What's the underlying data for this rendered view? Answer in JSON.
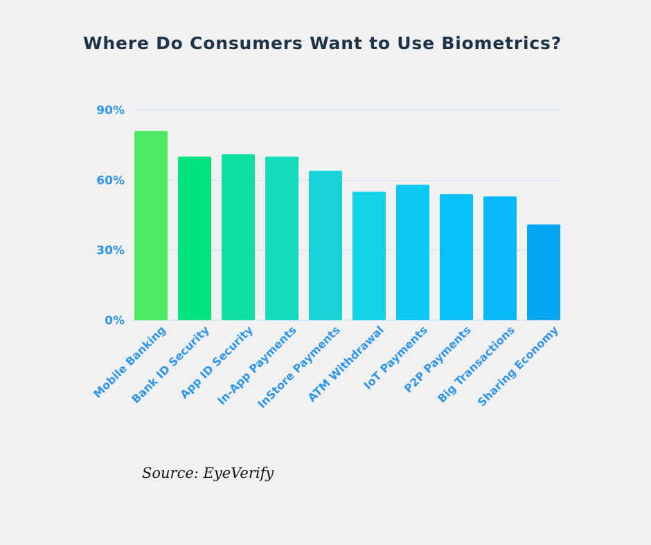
{
  "chart_data": {
    "type": "bar",
    "title": "Where Do Consumers Want to Use Biometrics?",
    "categories": [
      "Mobile Banking",
      "Bank ID Security",
      "App ID Security",
      "In-App Payments",
      "InStore Payments",
      "ATM Withdrawal",
      "IoT Payments",
      "P2P Payments",
      "Big Transactions",
      "Sharing Economy"
    ],
    "values": [
      81,
      70,
      71,
      70,
      64,
      55,
      58,
      54,
      53,
      41
    ],
    "colors": [
      "#4fea63",
      "#00e47f",
      "#0fe0a2",
      "#14dcbb",
      "#18d3d6",
      "#12d2e8",
      "#0bc9f4",
      "#07c0f8",
      "#08b8f8",
      "#03a6f1"
    ],
    "yticks": [
      0,
      30,
      60,
      90
    ],
    "ytick_labels": [
      "0%",
      "30%",
      "60%",
      "90%"
    ],
    "ylim": [
      0,
      90
    ],
    "xlabel": "",
    "ylabel": "",
    "grid": true,
    "grid_color": "#c8def2",
    "axis_label_color": "#2f95ec",
    "title_color": "#1f3346"
  },
  "source": "Source: EyeVerify"
}
